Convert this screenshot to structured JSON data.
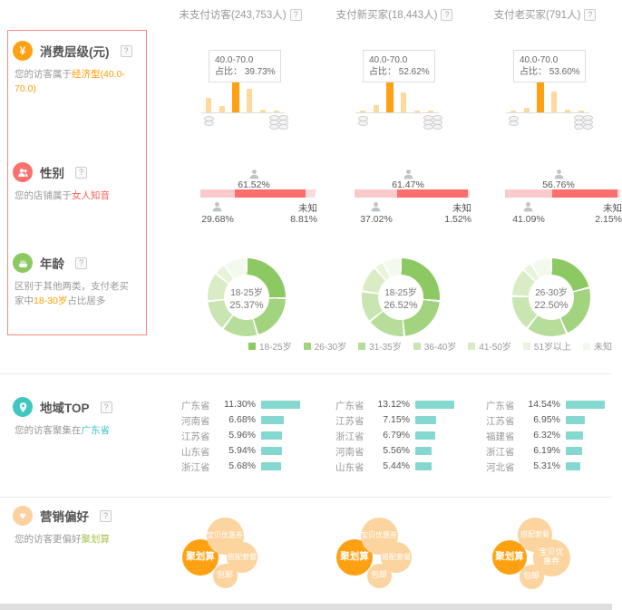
{
  "help_glyph": "?",
  "header": {
    "columns": [
      {
        "label": "未支付访客(243,753人)"
      },
      {
        "label": "支付新买家(18,443人)"
      },
      {
        "label": "支付老买家(791人)"
      }
    ]
  },
  "sidebar": {
    "sections": [
      {
        "id": "consumption",
        "title": "消费层级(元)",
        "icon": "yen-icon",
        "icon_color": "#ffa112",
        "icon_glyph": "¥",
        "desc_prefix": "您的访客属于",
        "desc_highlight": "经济型(40.0-70.0)",
        "desc_suffix": "",
        "highlight_color": "#ff9d00"
      },
      {
        "id": "gender",
        "title": "性别",
        "icon": "people-icon",
        "icon_color": "#f9716d",
        "icon_glyph": "",
        "desc_prefix": "您的店铺属于",
        "desc_highlight": "女人知音",
        "desc_suffix": "",
        "highlight_color": "#f9605a"
      },
      {
        "id": "age",
        "title": "年龄",
        "icon": "cake-icon",
        "icon_color": "#8cc963",
        "icon_glyph": "",
        "desc_prefix": "区别于其他两类，支付老买家中",
        "desc_highlight": "18-30岁",
        "desc_suffix": "占比居多",
        "highlight_color": "#ff9d00"
      },
      {
        "id": "region",
        "title": "地域TOP",
        "icon": "location-pin-icon",
        "icon_color": "#3fc7c0",
        "icon_glyph": "",
        "desc_prefix": "您的访客聚集在",
        "desc_highlight": "广东省",
        "desc_suffix": "",
        "highlight_color": "#3fc7c0"
      },
      {
        "id": "marketing",
        "title": "营销偏好",
        "icon": "heart-icon",
        "icon_color": "#fdd0a0",
        "icon_glyph": "♥",
        "desc_prefix": "您的访客更偏好",
        "desc_highlight": "聚划算",
        "desc_suffix": "",
        "highlight_color": "#a5c24a"
      }
    ]
  },
  "chart_data": [
    {
      "id": "consumption",
      "type": "bar",
      "title": "消费层级(元)",
      "note": "x axis shown as coin icons (low price to high price), no text tick labels; values are 占比 %",
      "colors": {
        "bar": "#ffd89e",
        "highlight": "#ffa112"
      },
      "tooltip_title": "40.0-70.0",
      "tooltip_prefix": "占比：",
      "columns": [
        {
          "tooltip_value": "39.73%",
          "highlight_index": 2,
          "values": [
            18,
            8.4,
            39.73,
            30,
            3.8,
            1.5
          ]
        },
        {
          "tooltip_value": "52.62%",
          "highlight_index": 2,
          "values": [
            3,
            12,
            52.62,
            33,
            3,
            1
          ]
        },
        {
          "tooltip_value": "53.60%",
          "highlight_index": 2,
          "values": [
            1.5,
            8,
            53.6,
            35,
            5,
            1.5
          ]
        }
      ]
    },
    {
      "id": "gender",
      "type": "stacked-bar",
      "title": "性别",
      "unknown_text": "未知",
      "colors": {
        "male": "#f8caca",
        "female": "#fd6e6e",
        "unknown": "#fbdcdc"
      },
      "columns": [
        {
          "male": 29.68,
          "female": 61.52,
          "unknown": 8.81,
          "male_label": "29.68%",
          "female_label": "61.52%",
          "unknown_label": "8.81%"
        },
        {
          "male": 37.02,
          "female": 61.47,
          "unknown": 1.52,
          "male_label": "37.02%",
          "female_label": "61.47%",
          "unknown_label": "1.52%"
        },
        {
          "male": 41.09,
          "female": 56.76,
          "unknown": 2.15,
          "male_label": "41.09%",
          "female_label": "56.76%",
          "unknown_label": "2.15%"
        }
      ]
    },
    {
      "id": "age",
      "type": "pie",
      "title": "年龄",
      "legend": [
        "18-25岁",
        "26-30岁",
        "31-35岁",
        "36-40岁",
        "41-50岁",
        "51岁以上",
        "未知"
      ],
      "colors": [
        "#8cc963",
        "#a2d37f",
        "#b7dd9b",
        "#c9e5b1",
        "#daecc5",
        "#e9f3da",
        "#f4f9ee"
      ],
      "columns": [
        {
          "center_label": "18-25岁",
          "center_value": "25.37%",
          "values": [
            25.37,
            20,
            15,
            13,
            12,
            5,
            9.6
          ]
        },
        {
          "center_label": "18-25岁",
          "center_value": "26.52%",
          "values": [
            26.52,
            22,
            16,
            13,
            11,
            4,
            7.5
          ]
        },
        {
          "center_label": "26-30岁",
          "center_value": "22.50%",
          "values": [
            21,
            22.5,
            17,
            15,
            12,
            4,
            8.5
          ]
        }
      ]
    },
    {
      "id": "region",
      "type": "hbar",
      "title": "地域TOP",
      "color": "#84d8cf",
      "columns": [
        {
          "rows": [
            {
              "name": "广东省",
              "pct": "11.30%",
              "value": 11.3
            },
            {
              "name": "河南省",
              "pct": "6.68%",
              "value": 6.68
            },
            {
              "name": "江苏省",
              "pct": "5.96%",
              "value": 5.96
            },
            {
              "name": "山东省",
              "pct": "5.94%",
              "value": 5.94
            },
            {
              "name": "浙江省",
              "pct": "5.68%",
              "value": 5.68
            }
          ]
        },
        {
          "rows": [
            {
              "name": "广东省",
              "pct": "13.12%",
              "value": 13.12
            },
            {
              "name": "江苏省",
              "pct": "7.15%",
              "value": 7.15
            },
            {
              "name": "浙江省",
              "pct": "6.79%",
              "value": 6.79
            },
            {
              "name": "河南省",
              "pct": "5.56%",
              "value": 5.56
            },
            {
              "name": "山东省",
              "pct": "5.44%",
              "value": 5.44
            }
          ]
        },
        {
          "rows": [
            {
              "name": "广东省",
              "pct": "14.54%",
              "value": 14.54
            },
            {
              "name": "江苏省",
              "pct": "6.95%",
              "value": 6.95
            },
            {
              "name": "福建省",
              "pct": "6.32%",
              "value": 6.32
            },
            {
              "name": "浙江省",
              "pct": "6.19%",
              "value": 6.19
            },
            {
              "name": "河北省",
              "pct": "5.31%",
              "value": 5.31
            }
          ]
        }
      ]
    },
    {
      "id": "marketing",
      "type": "bubble",
      "title": "营销偏好",
      "colors": {
        "bubble": "#fcd49f",
        "highlight": "#ffa112"
      },
      "columns": [
        {
          "bubbles": [
            {
              "label": "聚划算",
              "x": 41,
              "y": 59,
              "d": 40,
              "highlight": true
            },
            {
              "label": "宝贝优惠券",
              "x": 68,
              "y": 35,
              "d": 41
            },
            {
              "label": "搭配套餐",
              "x": 87,
              "y": 59,
              "d": 34
            },
            {
              "label": "包邮",
              "x": 68,
              "y": 79,
              "d": 27
            }
          ]
        },
        {
          "bubbles": [
            {
              "label": "聚划算",
              "x": 41,
              "y": 59,
              "d": 40,
              "highlight": true
            },
            {
              "label": "宝贝优惠券",
              "x": 68,
              "y": 35,
              "d": 41
            },
            {
              "label": "搭配套餐",
              "x": 87,
              "y": 59,
              "d": 34
            },
            {
              "label": "包邮",
              "x": 68,
              "y": 79,
              "d": 27
            }
          ]
        },
        {
          "bubbles": [
            {
              "label": "聚划算",
              "x": 46,
              "y": 59,
              "d": 38,
              "highlight": true
            },
            {
              "label": "搭配套餐",
              "x": 74,
              "y": 34,
              "d": 38
            },
            {
              "label": "宝贝优惠券",
              "x": 92,
              "y": 59,
              "d": 41,
              "two_line": true
            },
            {
              "label": "包邮",
              "x": 70,
              "y": 80,
              "d": 27
            }
          ]
        }
      ]
    }
  ]
}
